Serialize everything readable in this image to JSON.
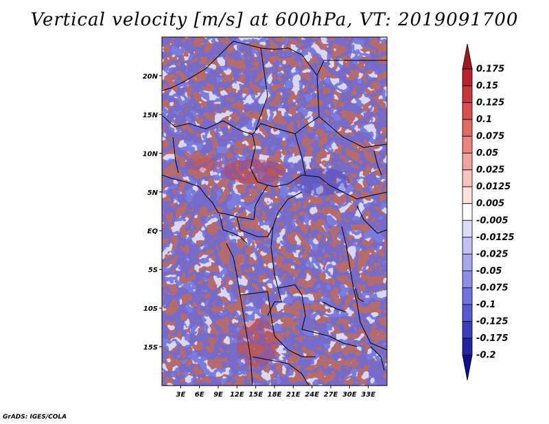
{
  "title": "Vertical velocity [m/s] at 600hPa, VT: 2019091700",
  "credit": "GrADS: IGES/COLA",
  "map": {
    "lon_range": [
      0,
      36
    ],
    "lat_range": [
      -20,
      25
    ],
    "lat_labels": [
      {
        "value": 20,
        "text": "20N"
      },
      {
        "value": 15,
        "text": "15N"
      },
      {
        "value": 10,
        "text": "10N"
      },
      {
        "value": 5,
        "text": "5N"
      },
      {
        "value": 0,
        "text": "EQ"
      },
      {
        "value": -5,
        "text": "5S"
      },
      {
        "value": -10,
        "text": "10S"
      },
      {
        "value": -15,
        "text": "15S"
      }
    ],
    "lon_labels": [
      {
        "value": 3,
        "text": "3E"
      },
      {
        "value": 6,
        "text": "6E"
      },
      {
        "value": 9,
        "text": "9E"
      },
      {
        "value": 12,
        "text": "12E"
      },
      {
        "value": 15,
        "text": "15E"
      },
      {
        "value": 18,
        "text": "18E"
      },
      {
        "value": 21,
        "text": "21E"
      },
      {
        "value": 24,
        "text": "24E"
      },
      {
        "value": 27,
        "text": "27E"
      },
      {
        "value": 30,
        "text": "30E"
      },
      {
        "value": 33,
        "text": "33E"
      }
    ]
  },
  "colorbar": {
    "labels": [
      "0.175",
      "0.15",
      "0.125",
      "0.1",
      "0.075",
      "0.05",
      "0.025",
      "0.0125",
      "0.005",
      "-0.005",
      "-0.0125",
      "-0.025",
      "-0.05",
      "-0.075",
      "-0.1",
      "-0.125",
      "-0.175",
      "-0.2"
    ],
    "colors": [
      "#a01820",
      "#b82228",
      "#c8383a",
      "#d6504e",
      "#e06a64",
      "#e8867e",
      "#f0a49c",
      "#f6c4bc",
      "#fbe2dc",
      "#ffffff",
      "#dcdcf8",
      "#c2c2f2",
      "#a8a8ec",
      "#8e8ee4",
      "#7272dc",
      "#5858d0",
      "#3c3cbc",
      "#2424a0",
      "#10108a"
    ]
  }
}
